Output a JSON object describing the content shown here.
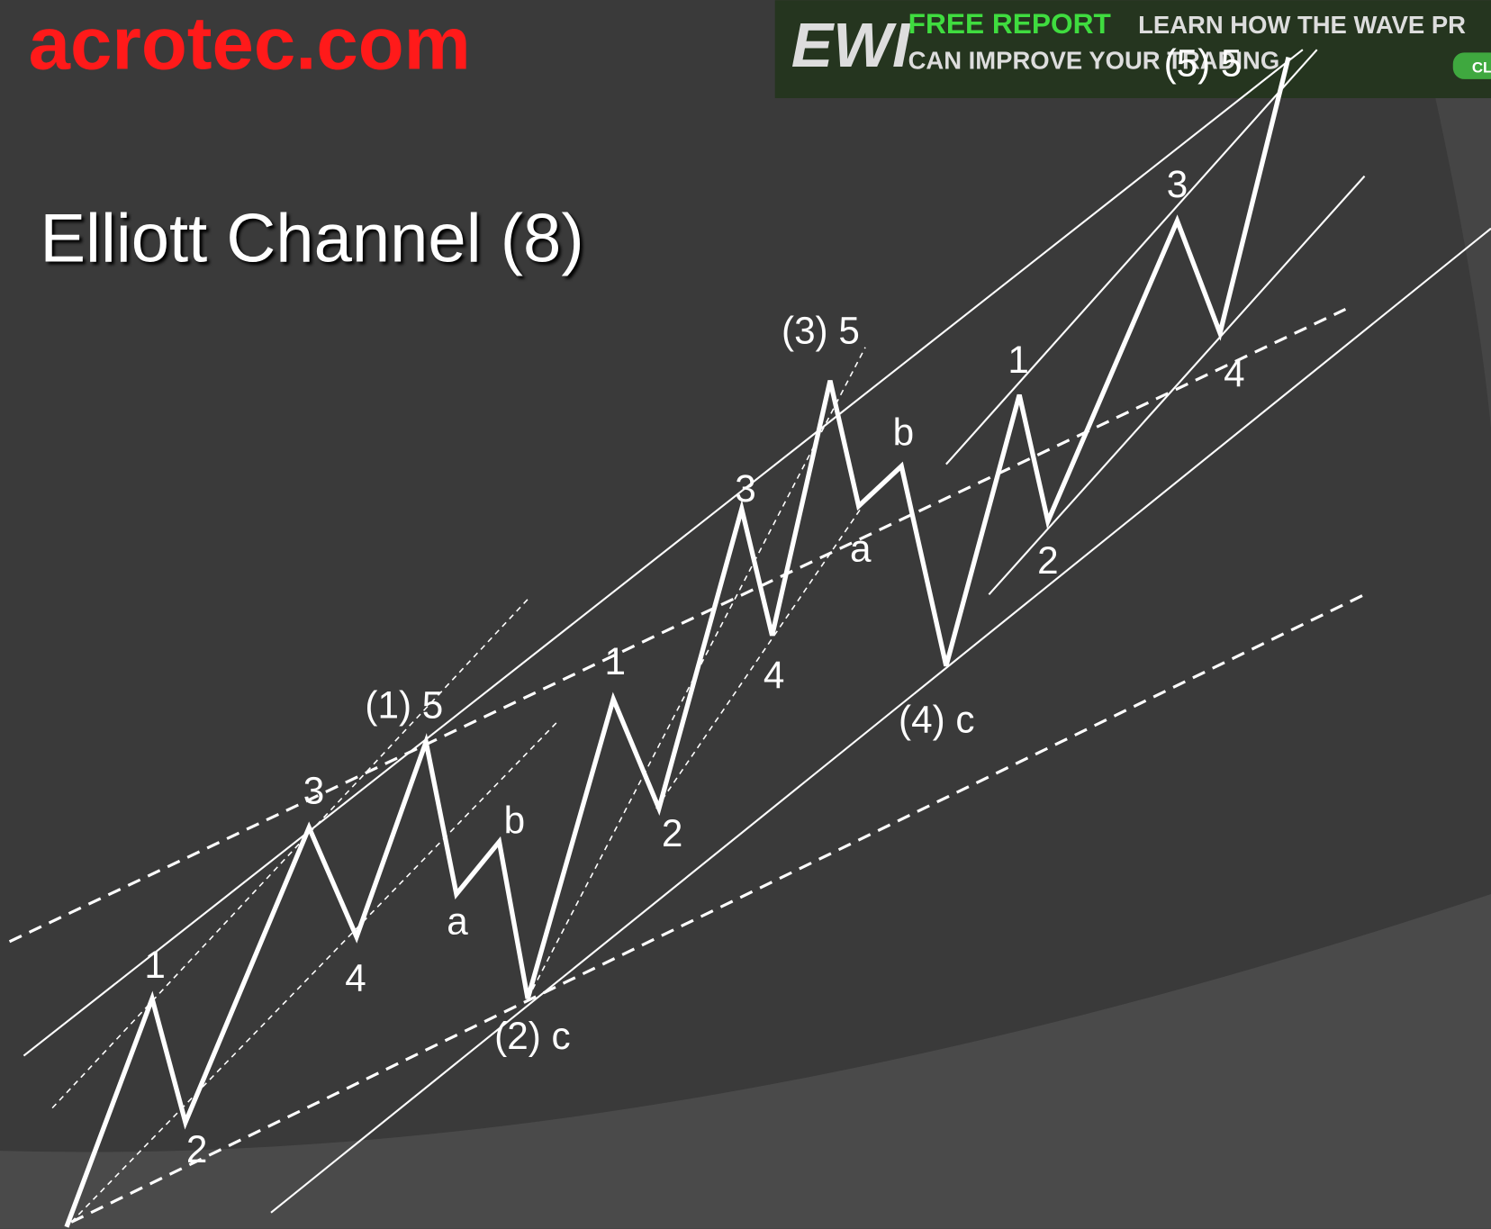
{
  "header": {
    "site": "acrotec.com",
    "title": "Elliott Channel (8)"
  },
  "ad": {
    "logo": "EWI",
    "highlight": "FREE REPORT",
    "line1": "LEARN HOW THE WAVE PR",
    "line2": "CAN IMPROVE YOUR TRADING",
    "button": "CL"
  },
  "labels": [
    "1",
    "2",
    "3",
    "4",
    "(1) 5",
    "a",
    "b",
    "(2) c",
    "1",
    "2",
    "3",
    "4",
    "(3) 5",
    "a",
    "b",
    "(4) c",
    "1",
    "2",
    "3",
    "4",
    "(5) 5"
  ]
}
